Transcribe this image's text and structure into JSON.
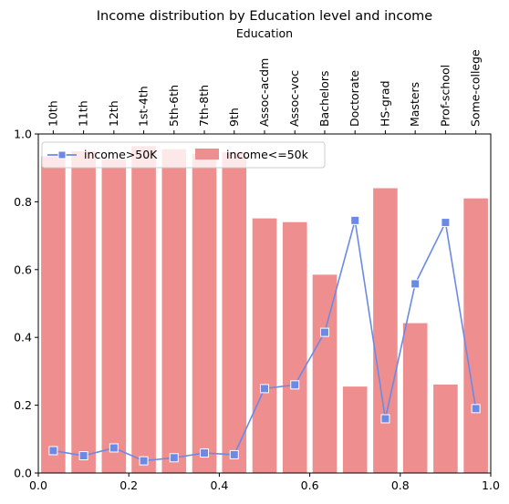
{
  "chart_data": {
    "type": "bar",
    "title": "Income distribution by Education level and income",
    "top_xlabel": "Education",
    "categories": [
      "10th",
      "11th",
      "12th",
      "1st-4th",
      "5th-6th",
      "7th-8th",
      "9th",
      "Assoc-acdm",
      "Assoc-voc",
      "Bachelors",
      "Doctorate",
      "HS-grad",
      "Masters",
      "Prof-school",
      "Some-college"
    ],
    "series": [
      {
        "name": "income>50K",
        "type": "line",
        "color": "#6b8ae6",
        "x": [
          0.033,
          0.1,
          0.167,
          0.233,
          0.3,
          0.367,
          0.433,
          0.5,
          0.567,
          0.633,
          0.7,
          0.767,
          0.833,
          0.9,
          0.967
        ],
        "values": [
          0.066,
          0.051,
          0.074,
          0.036,
          0.045,
          0.059,
          0.054,
          0.249,
          0.26,
          0.415,
          0.745,
          0.16,
          0.558,
          0.739,
          0.19
        ]
      },
      {
        "name": "income<=50k",
        "type": "bar",
        "color": "#ee8e8e",
        "x": [
          0.033,
          0.1,
          0.167,
          0.233,
          0.3,
          0.367,
          0.433,
          0.5,
          0.567,
          0.633,
          0.7,
          0.767,
          0.833,
          0.9,
          0.967
        ],
        "values": [
          0.934,
          0.949,
          0.926,
          0.964,
          0.955,
          0.941,
          0.946,
          0.751,
          0.74,
          0.585,
          0.255,
          0.84,
          0.442,
          0.261,
          0.81
        ]
      }
    ],
    "xlim": [
      0,
      1
    ],
    "ylim": [
      0,
      1
    ],
    "xticks": [
      "0.0",
      "0.2",
      "0.4",
      "0.6",
      "0.8",
      "1.0"
    ],
    "yticks": [
      "0.0",
      "0.2",
      "0.4",
      "0.6",
      "0.8",
      "1.0"
    ],
    "legend_position": "top-left",
    "grid": false
  }
}
